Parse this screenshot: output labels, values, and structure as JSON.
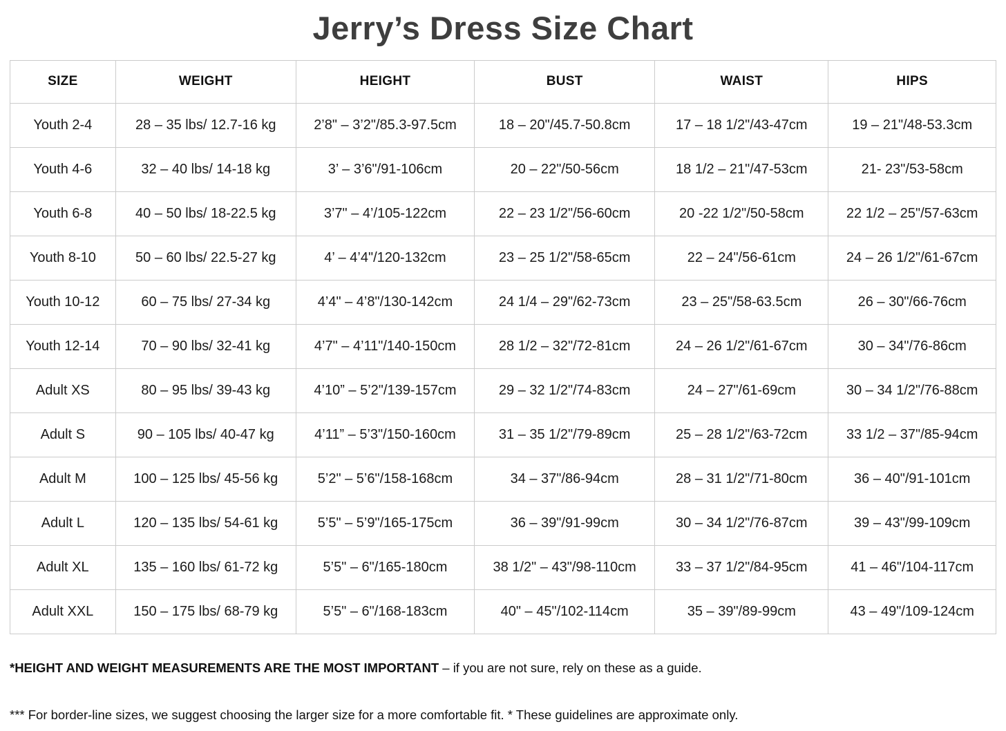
{
  "title": "Jerry’s Dress Size Chart",
  "table": {
    "columns": [
      "SIZE",
      "WEIGHT",
      "HEIGHT",
      "BUST",
      "WAIST",
      "HIPS"
    ],
    "rows": [
      [
        "Youth 2-4",
        "28 – 35 lbs/ 12.7-16 kg",
        "2’8\" – 3’2\"/85.3-97.5cm",
        "18 – 20\"/45.7-50.8cm",
        "17 – 18 1/2\"/43-47cm",
        "19 – 21\"/48-53.3cm"
      ],
      [
        "Youth 4-6",
        "32 – 40 lbs/ 14-18 kg",
        "3’ – 3’6\"/91-106cm",
        "20 – 22\"/50-56cm",
        "18 1/2 – 21\"/47-53cm",
        "21- 23\"/53-58cm"
      ],
      [
        "Youth 6-8",
        "40 – 50 lbs/ 18-22.5 kg",
        "3’7\" – 4’/105-122cm",
        "22 – 23 1/2\"/56-60cm",
        "20 -22 1/2\"/50-58cm",
        "22 1/2 – 25\"/57-63cm"
      ],
      [
        "Youth 8-10",
        "50 – 60 lbs/ 22.5-27 kg",
        "4’ – 4’4\"/120-132cm",
        "23 – 25 1/2\"/58-65cm",
        "22 – 24\"/56-61cm",
        "24 – 26 1/2\"/61-67cm"
      ],
      [
        "Youth 10-12",
        "60 – 75 lbs/ 27-34 kg",
        "4’4\" – 4’8\"/130-142cm",
        "24 1/4 – 29\"/62-73cm",
        "23 – 25\"/58-63.5cm",
        "26 – 30\"/66-76cm"
      ],
      [
        "Youth 12-14",
        "70 – 90 lbs/ 32-41 kg",
        "4’7\" – 4’11\"/140-150cm",
        "28 1/2 – 32\"/72-81cm",
        "24 – 26 1/2\"/61-67cm",
        "30 – 34\"/76-86cm"
      ],
      [
        "Adult XS",
        "80 – 95 lbs/ 39-43 kg",
        "4’10” – 5’2\"/139-157cm",
        "29 – 32 1/2\"/74-83cm",
        "24 – 27\"/61-69cm",
        "30 – 34 1/2\"/76-88cm"
      ],
      [
        "Adult S",
        "90 – 105 lbs/ 40-47 kg",
        "4’11” – 5’3\"/150-160cm",
        "31 – 35 1/2\"/79-89cm",
        "25 – 28 1/2\"/63-72cm",
        "33 1/2 – 37\"/85-94cm"
      ],
      [
        "Adult M",
        "100 – 125 lbs/ 45-56 kg",
        "5’2\" – 5’6\"/158-168cm",
        "34 – 37\"/86-94cm",
        "28 – 31 1/2\"/71-80cm",
        "36 – 40\"/91-101cm"
      ],
      [
        "Adult L",
        "120 – 135 lbs/ 54-61 kg",
        "5’5\" – 5’9\"/165-175cm",
        "36 – 39\"/91-99cm",
        "30 – 34 1/2\"/76-87cm",
        "39 – 43\"/99-109cm"
      ],
      [
        "Adult XL",
        "135 – 160 lbs/ 61-72 kg",
        "5’5\" – 6\"/165-180cm",
        "38 1/2\" – 43\"/98-110cm",
        "33 – 37 1/2\"/84-95cm",
        "41 – 46\"/104-117cm"
      ],
      [
        "Adult XXL",
        "150 – 175 lbs/ 68-79 kg",
        "5’5\" – 6\"/168-183cm",
        "40\" – 45\"/102-114cm",
        "35 – 39\"/89-99cm",
        "43 – 49\"/109-124cm"
      ]
    ]
  },
  "footnotes": {
    "note1_bold": "*HEIGHT AND WEIGHT MEASUREMENTS ARE THE MOST IMPORTANT",
    "note1_rest": " – if you are not sure, rely on these as a guide.",
    "note2": "*** For border-line sizes, we suggest choosing the larger size for a more comfortable fit. * These guidelines are approximate only."
  },
  "colors": {
    "title_text": "#3e3e3e",
    "body_text": "#1b1b1b",
    "table_border": "#cbcbcb",
    "background": "#ffffff"
  }
}
